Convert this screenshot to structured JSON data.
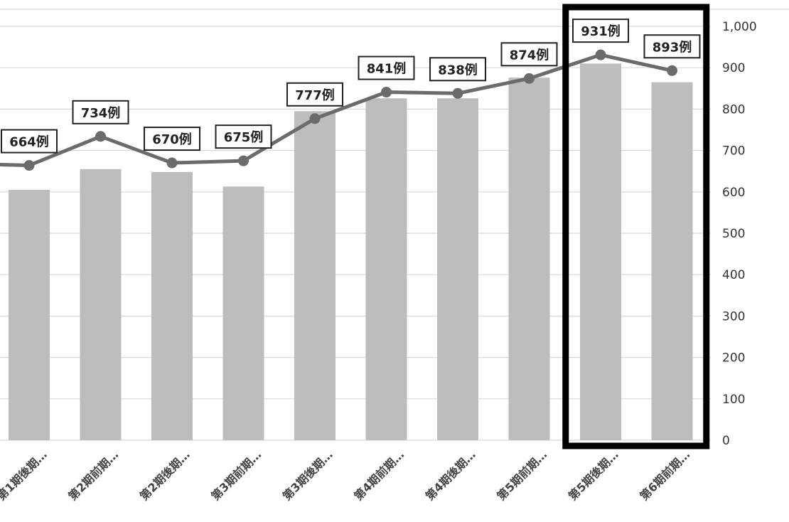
{
  "chart_data": {
    "type": "bar+line",
    "categories": [
      "第1期後期…",
      "第2期前期…",
      "第2期後期…",
      "第3期前期…",
      "第3期後期…",
      "第4期前期…",
      "第4期後期…",
      "第5期前期…",
      "第5期後期…",
      "第6期前期…"
    ],
    "series": [
      {
        "type": "bar",
        "values": [
          605,
          655,
          648,
          613,
          795,
          826,
          826,
          876,
          910,
          865
        ]
      },
      {
        "type": "line",
        "values": [
          664,
          734,
          670,
          675,
          777,
          841,
          838,
          874,
          931,
          893
        ],
        "labels": [
          "664例",
          "734例",
          "670例",
          "675例",
          "777例",
          "841例",
          "838例",
          "874例",
          "931例",
          "893例"
        ]
      }
    ],
    "y_ticks": [
      "1,000",
      "900",
      "800",
      "700",
      "600",
      "500",
      "400",
      "300",
      "200",
      "100",
      "0"
    ],
    "ylim": [
      0,
      1000
    ],
    "y_axis_side": "right",
    "grid": true,
    "legend": "none",
    "highlight": {
      "from_category": 8,
      "to_category": 9
    },
    "colors": {
      "bar": "#bdbdbd",
      "line": "#6b6b6b",
      "grid": "#d9d9d9",
      "highlight": "#000000"
    }
  }
}
